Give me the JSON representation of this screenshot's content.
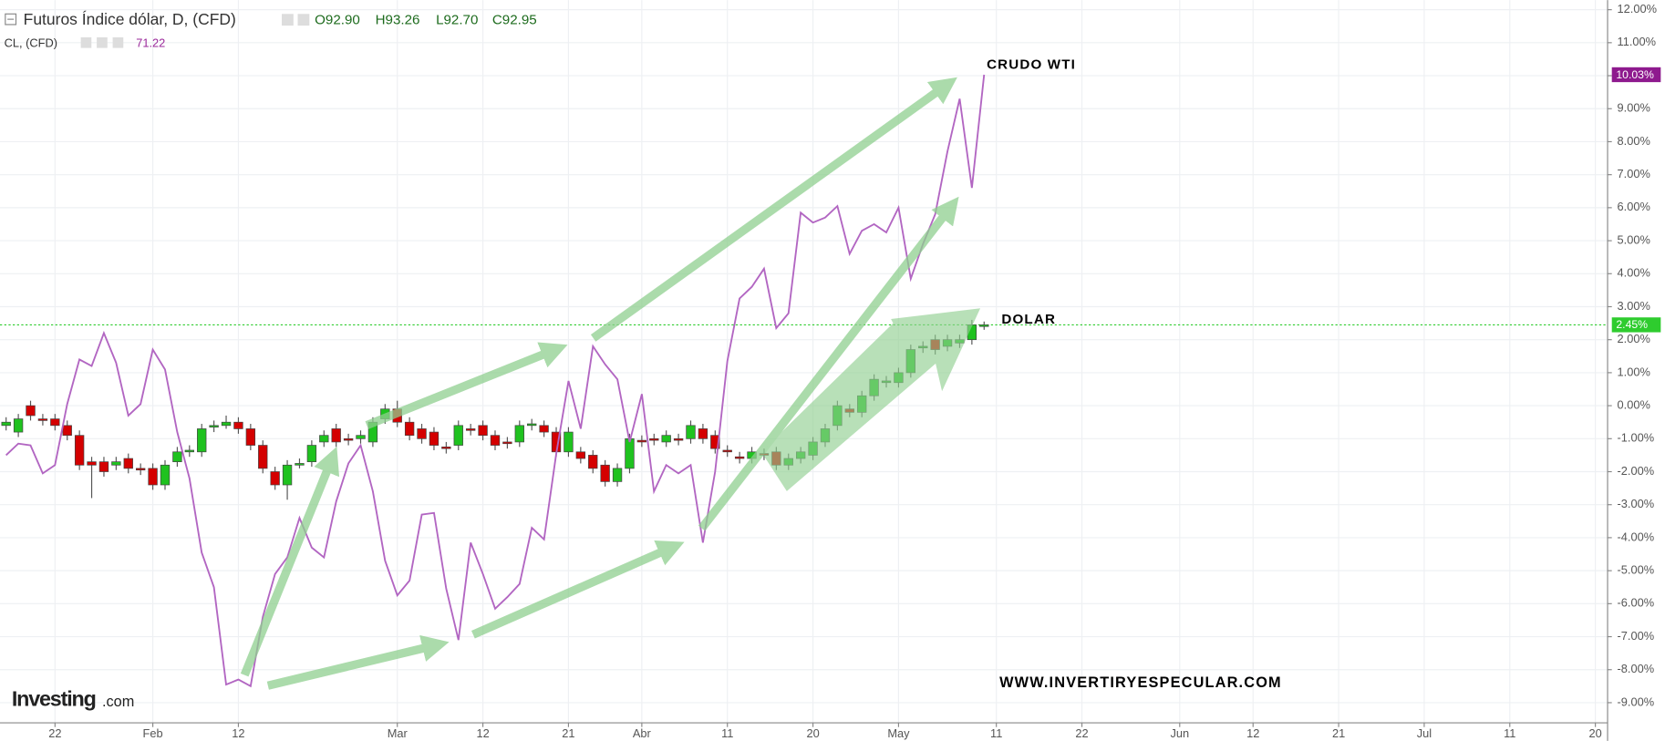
{
  "header": {
    "title": "Futuros Índice dólar, D, (CFD)",
    "open": "O92.90",
    "high": "H93.26",
    "low": "L92.70",
    "close": "C92.95",
    "overlay_title": "CL, (CFD)",
    "overlay_value": "71.22"
  },
  "annotations": {
    "crude": "CRUDO WTI",
    "dollar": "DOLAR",
    "website": "WWW.INVERTIRYESPECULAR.COM",
    "logo": "Investing",
    "logo_suffix": ".com"
  },
  "chart_data": {
    "type": "candlestick",
    "xlim": [
      -0.5,
      131
    ],
    "xticks": [
      {
        "value": 4,
        "label": "22"
      },
      {
        "value": 12,
        "label": "Feb"
      },
      {
        "value": 19,
        "label": "12"
      },
      {
        "value": 32,
        "label": "Mar"
      },
      {
        "value": 39,
        "label": "12"
      },
      {
        "value": 46,
        "label": "21"
      },
      {
        "value": 52,
        "label": "Abr"
      },
      {
        "value": 59,
        "label": "11"
      },
      {
        "value": 66,
        "label": "20"
      },
      {
        "value": 73,
        "label": "May"
      },
      {
        "value": 81,
        "label": "11"
      },
      {
        "value": 88,
        "label": "22"
      },
      {
        "value": 96,
        "label": "Jun"
      },
      {
        "value": 102,
        "label": "12"
      },
      {
        "value": 109,
        "label": "21"
      },
      {
        "value": 116,
        "label": "Jul"
      },
      {
        "value": 123,
        "label": "11"
      },
      {
        "value": 130,
        "label": "20"
      }
    ],
    "ylim": [
      -9.61,
      12.29
    ],
    "yticks": [
      {
        "value": 12,
        "label": "12.00%"
      },
      {
        "value": 11,
        "label": "11.00%"
      },
      {
        "value": 10,
        "label": "10.00%"
      },
      {
        "value": 9,
        "label": "9.00%"
      },
      {
        "value": 8,
        "label": "8.00%"
      },
      {
        "value": 7,
        "label": "7.00%"
      },
      {
        "value": 6,
        "label": "6.00%"
      },
      {
        "value": 5,
        "label": "5.00%"
      },
      {
        "value": 4,
        "label": "4.00%"
      },
      {
        "value": 3,
        "label": "3.00%"
      },
      {
        "value": 2,
        "label": "2.00%"
      },
      {
        "value": 1,
        "label": "1.00%"
      },
      {
        "value": 0,
        "label": "0.00%"
      },
      {
        "value": -1,
        "label": "-1.00%"
      },
      {
        "value": -2,
        "label": "-2.00%"
      },
      {
        "value": -3,
        "label": "-3.00%"
      },
      {
        "value": -4,
        "label": "-4.00%"
      },
      {
        "value": -5,
        "label": "-5.00%"
      },
      {
        "value": -6,
        "label": "-6.00%"
      },
      {
        "value": -7,
        "label": "-7.00%"
      },
      {
        "value": -8,
        "label": "-8.00%"
      },
      {
        "value": -9,
        "label": "-9.00%"
      }
    ],
    "grid": true,
    "series": [
      {
        "name": "Futuros Índice dólar, D, (CFD)",
        "type": "candlestick",
        "color_up": "#1fc21f",
        "color_down": "#d40000",
        "open": [
          -0.6,
          -0.8,
          0,
          -0.4,
          -0.4,
          -0.6,
          -0.9,
          -1.7,
          -1.7,
          -1.8,
          -1.6,
          -1.9,
          -1.9,
          -2.4,
          -1.7,
          -1.4,
          -1.4,
          -0.65,
          -0.6,
          -0.5,
          -0.7,
          -1.2,
          -2.0,
          -2.4,
          -1.8,
          -1.7,
          -1.1,
          -0.7,
          -1.0,
          -1.0,
          -1.1,
          -0.4,
          -0.1,
          -0.5,
          -0.7,
          -0.8,
          -1.25,
          -1.2,
          -0.7,
          -0.6,
          -0.9,
          -1.1,
          -1.1,
          -0.6,
          -0.6,
          -0.8,
          -1.4,
          -1.4,
          -1.5,
          -1.8,
          -2.3,
          -1.9,
          -1.05,
          -1.0,
          -1.1,
          -1.0,
          -1.0,
          -0.7,
          -0.9,
          -1.35,
          -1.55,
          -1.6,
          -1.45,
          -1.4,
          -1.8,
          -1.6,
          -1.5,
          -1.1,
          -0.6,
          -0.1,
          -0.2,
          0.3,
          0.7,
          0.7,
          1.0,
          1.75,
          2.0,
          1.8,
          1.9,
          2.0,
          2.4
        ],
        "high": [
          -0.35,
          -0.25,
          0.15,
          -0.25,
          -0.25,
          -0.45,
          -0.75,
          -1.55,
          -1.55,
          -1.55,
          -1.45,
          -1.75,
          -1.75,
          -1.65,
          -1.25,
          -1.2,
          -0.55,
          -0.45,
          -0.3,
          -0.35,
          -0.55,
          -1.05,
          -1.85,
          -1.65,
          -1.6,
          -1.05,
          -0.75,
          -0.55,
          -0.85,
          -0.75,
          -0.35,
          0.05,
          0.15,
          -0.35,
          -0.55,
          -0.65,
          -1.1,
          -0.45,
          -0.55,
          -0.45,
          -0.75,
          -0.95,
          -0.45,
          -0.4,
          -0.45,
          -0.65,
          -0.65,
          -1.25,
          -1.35,
          -1.65,
          -1.75,
          -0.85,
          -0.9,
          -0.85,
          -0.75,
          -0.85,
          -0.45,
          -0.55,
          -0.75,
          -1.2,
          -1.4,
          -1.25,
          -1.3,
          -1.25,
          -1.45,
          -1.25,
          -0.95,
          -0.55,
          0.15,
          0.05,
          0.45,
          0.95,
          0.9,
          1.15,
          1.85,
          1.95,
          2.15,
          2.15,
          2.15,
          2.6,
          2.55
        ],
        "low": [
          -0.75,
          -0.95,
          -0.45,
          -0.6,
          -0.75,
          -1.05,
          -1.95,
          -2.8,
          -2.15,
          -1.95,
          -2.05,
          -2.1,
          -2.55,
          -2.55,
          -1.85,
          -1.55,
          -1.55,
          -0.8,
          -0.7,
          -0.85,
          -1.35,
          -2.05,
          -2.55,
          -2.85,
          -1.9,
          -1.85,
          -1.25,
          -1.25,
          -1.2,
          -1.15,
          -1.25,
          -0.55,
          -0.65,
          -1.05,
          -1.15,
          -1.35,
          -1.45,
          -1.35,
          -0.9,
          -1.05,
          -1.35,
          -1.3,
          -1.25,
          -0.75,
          -0.95,
          -1.55,
          -1.55,
          -1.75,
          -2.05,
          -2.45,
          -2.45,
          -2.05,
          -1.25,
          -1.2,
          -1.25,
          -1.2,
          -1.15,
          -1.15,
          -1.45,
          -1.55,
          -1.75,
          -1.75,
          -1.65,
          -1.95,
          -1.95,
          -1.75,
          -1.65,
          -1.25,
          -0.75,
          -0.35,
          -0.35,
          0.15,
          0.55,
          0.55,
          0.85,
          1.6,
          1.55,
          1.65,
          1.75,
          1.85,
          2.3
        ],
        "close": [
          -0.5,
          -0.4,
          -0.3,
          -0.45,
          -0.6,
          -0.9,
          -1.8,
          -1.8,
          -2.0,
          -1.7,
          -1.9,
          -1.95,
          -2.4,
          -1.8,
          -1.4,
          -1.35,
          -0.7,
          -0.6,
          -0.5,
          -0.7,
          -1.2,
          -1.9,
          -2.4,
          -1.8,
          -1.75,
          -1.2,
          -0.9,
          -1.1,
          -1.05,
          -0.9,
          -0.5,
          -0.1,
          -0.5,
          -0.9,
          -1.0,
          -1.2,
          -1.3,
          -0.6,
          -0.75,
          -0.9,
          -1.2,
          -1.15,
          -0.6,
          -0.55,
          -0.8,
          -1.4,
          -0.8,
          -1.6,
          -1.9,
          -2.3,
          -1.9,
          -1.0,
          -1.1,
          -1.05,
          -0.9,
          -1.05,
          -0.6,
          -1.0,
          -1.3,
          -1.4,
          -1.6,
          -1.4,
          -1.5,
          -1.8,
          -1.6,
          -1.4,
          -1.1,
          -0.7,
          0.0,
          -0.2,
          0.3,
          0.8,
          0.75,
          1.0,
          1.7,
          1.8,
          1.7,
          2.0,
          2.0,
          2.45,
          2.45
        ],
        "last_label": "2.45%",
        "price_line_color": "#2ecc2e"
      },
      {
        "name": "CL, (CFD)",
        "type": "line",
        "color": "#b266c2",
        "values": [
          -1.5,
          -1.15,
          -1.2,
          -2.05,
          -1.8,
          0.05,
          1.4,
          1.2,
          2.2,
          1.3,
          -0.3,
          0.05,
          1.7,
          1.1,
          -0.8,
          -2.2,
          -4.45,
          -5.5,
          -8.45,
          -8.3,
          -8.5,
          -6.4,
          -5.1,
          -4.6,
          -3.4,
          -4.3,
          -4.6,
          -2.9,
          -1.75,
          -1.2,
          -2.6,
          -4.7,
          -5.75,
          -5.3,
          -3.3,
          -3.25,
          -5.55,
          -7.1,
          -4.15,
          -5.1,
          -6.15,
          -5.8,
          -5.4,
          -3.7,
          -4.05,
          -1.45,
          0.75,
          -0.7,
          1.8,
          1.25,
          0.8,
          -1.1,
          0.35,
          -2.6,
          -1.8,
          -2.05,
          -1.8,
          -4.15,
          -2.0,
          1.35,
          3.25,
          3.6,
          4.15,
          2.35,
          2.8,
          5.85,
          5.55,
          5.7,
          6.05,
          4.6,
          5.3,
          5.5,
          5.25,
          6.0,
          3.85,
          4.9,
          5.8,
          7.7,
          9.3,
          6.6,
          10.03
        ],
        "last_label": "10.03%",
        "badge_color": "#8e1a8e"
      }
    ]
  }
}
